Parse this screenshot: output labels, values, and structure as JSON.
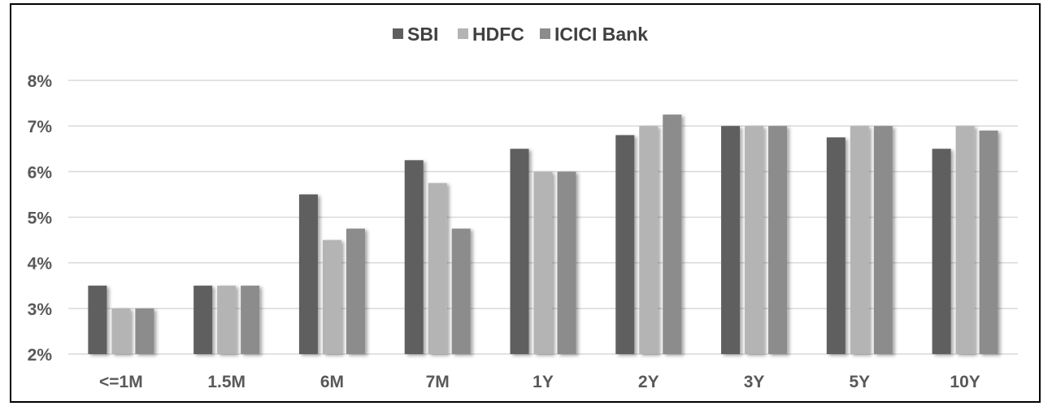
{
  "chart_data": {
    "type": "bar",
    "title": "",
    "xlabel": "",
    "ylabel": "",
    "categories": [
      "<=1M",
      "1.5M",
      "6M",
      "7M",
      "1Y",
      "2Y",
      "3Y",
      "5Y",
      "10Y"
    ],
    "series": [
      {
        "name": "SBI",
        "color": "#5f5f5f",
        "values": [
          3.5,
          3.5,
          5.5,
          6.25,
          6.5,
          6.8,
          7.0,
          6.75,
          6.5
        ]
      },
      {
        "name": "HDFC",
        "color": "#b4b4b4",
        "values": [
          3.0,
          3.5,
          4.5,
          5.75,
          6.0,
          7.0,
          7.0,
          7.0,
          7.0
        ]
      },
      {
        "name": "ICICI Bank",
        "color": "#8c8c8c",
        "values": [
          3.0,
          3.5,
          4.75,
          4.75,
          6.0,
          7.25,
          7.0,
          7.0,
          6.9
        ]
      }
    ],
    "ylim": [
      2,
      8
    ],
    "yticks": [
      "2%",
      "3%",
      "4%",
      "5%",
      "6%",
      "7%",
      "8%"
    ],
    "ytick_values": [
      2,
      3,
      4,
      5,
      6,
      7,
      8
    ],
    "grid": true,
    "legend_position": "top-center"
  }
}
